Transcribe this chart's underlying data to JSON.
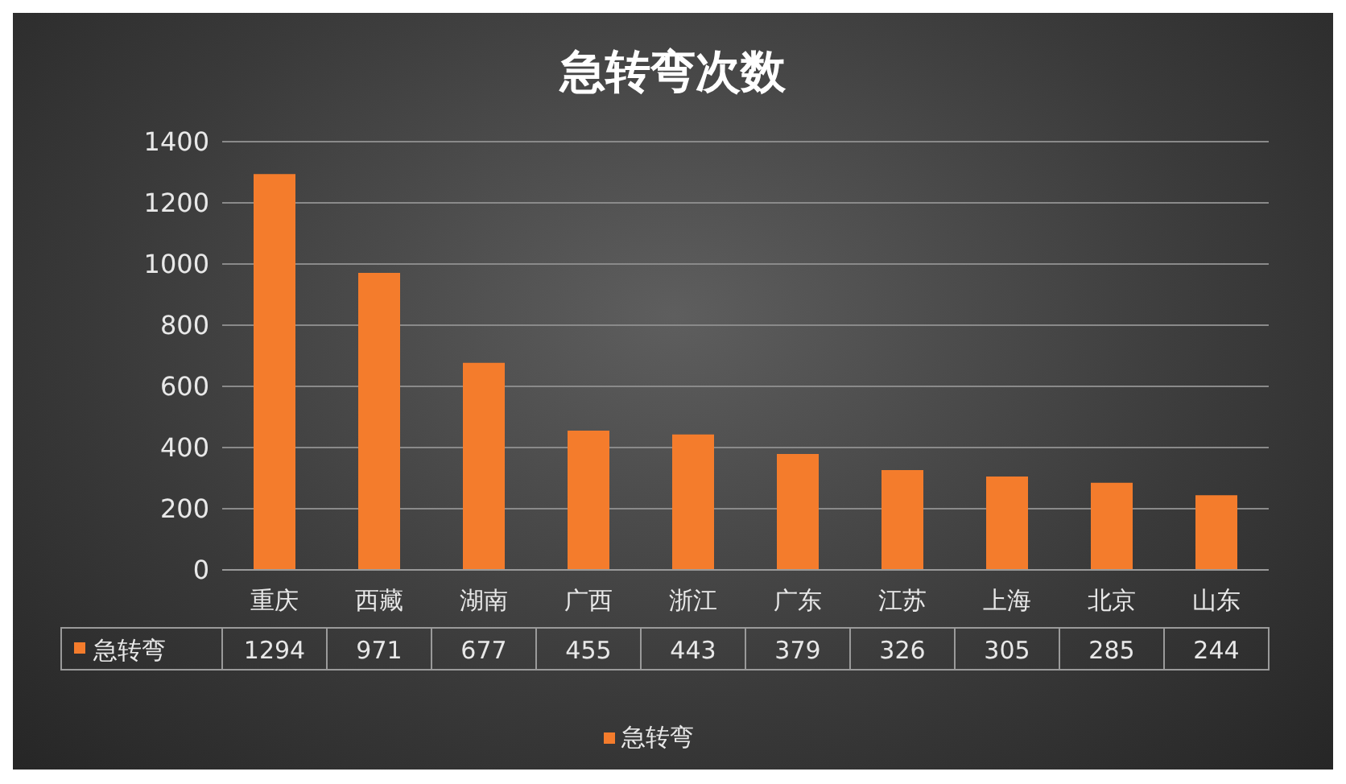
{
  "chart_data": {
    "type": "bar",
    "title": "急转弯次数",
    "categories": [
      "重庆",
      "西藏",
      "湖南",
      "广西",
      "浙江",
      "广东",
      "江苏",
      "上海",
      "北京",
      "山东"
    ],
    "series": [
      {
        "name": "急转弯",
        "color": "#f47c2c",
        "values": [
          1294,
          971,
          677,
          455,
          443,
          379,
          326,
          305,
          285,
          244
        ]
      }
    ],
    "ylim": [
      0,
      1400
    ],
    "yticks": [
      0,
      200,
      400,
      600,
      800,
      1000,
      1200,
      1400
    ],
    "grid": "y",
    "legend": "bottom",
    "data_labels": true
  }
}
